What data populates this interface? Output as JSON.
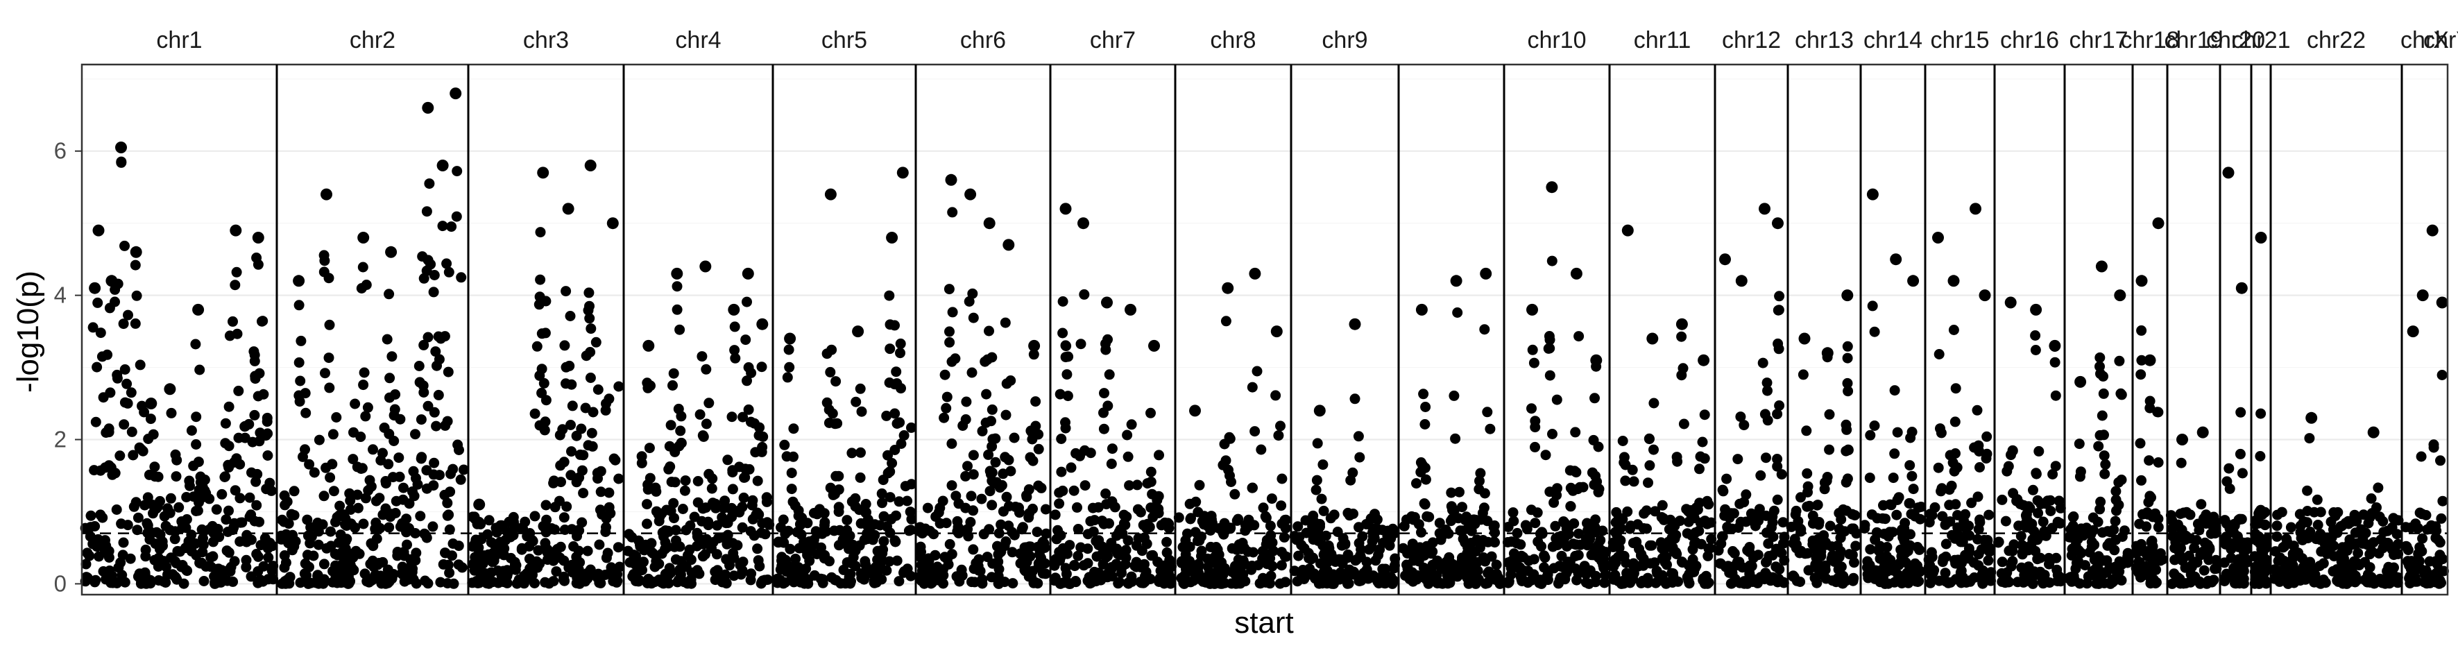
{
  "chart_data": {
    "type": "scatter",
    "title": "",
    "xlabel": "start",
    "ylabel": "-log10(p)",
    "ylim": [
      -0.15,
      7.2
    ],
    "yticks": [
      "0",
      "2",
      "4",
      "6"
    ],
    "grid": true,
    "reference_line": {
      "y": 0.7,
      "style": "dashed"
    },
    "panels": [
      {
        "name": "chr1",
        "label": "chr1",
        "peaks": [
          {
            "x": 0.05,
            "y": 4.1
          },
          {
            "x": 0.07,
            "y": 4.9
          },
          {
            "x": 0.14,
            "y": 4.2
          },
          {
            "x": 0.19,
            "y": 6.05
          },
          {
            "x": 0.27,
            "y": 4.6
          },
          {
            "x": 0.35,
            "y": 2.5
          },
          {
            "x": 0.45,
            "y": 2.7
          },
          {
            "x": 0.6,
            "y": 3.8
          },
          {
            "x": 0.8,
            "y": 4.9
          },
          {
            "x": 0.92,
            "y": 4.8
          }
        ],
        "floor": 0.2
      },
      {
        "name": "chr2",
        "label": "chr2",
        "peaks": [
          {
            "x": 0.1,
            "y": 4.2
          },
          {
            "x": 0.25,
            "y": 5.4
          },
          {
            "x": 0.45,
            "y": 4.8
          },
          {
            "x": 0.6,
            "y": 4.6
          },
          {
            "x": 0.8,
            "y": 6.6
          },
          {
            "x": 0.88,
            "y": 5.8
          },
          {
            "x": 0.95,
            "y": 6.8
          }
        ],
        "floor": 0.4
      },
      {
        "name": "chr3",
        "label": "chr3",
        "peaks": [
          {
            "x": 0.05,
            "y": 1.1
          },
          {
            "x": 0.2,
            "y": 0.8
          },
          {
            "x": 0.48,
            "y": 5.7
          },
          {
            "x": 0.65,
            "y": 5.2
          },
          {
            "x": 0.8,
            "y": 5.8
          },
          {
            "x": 0.95,
            "y": 5.0
          }
        ],
        "floor": 0.05
      },
      {
        "name": "chr4",
        "label": "chr4",
        "peaks": [
          {
            "x": 0.15,
            "y": 3.3
          },
          {
            "x": 0.35,
            "y": 4.3
          },
          {
            "x": 0.55,
            "y": 4.4
          },
          {
            "x": 0.75,
            "y": 3.8
          },
          {
            "x": 0.85,
            "y": 4.3
          },
          {
            "x": 0.95,
            "y": 3.6
          }
        ],
        "floor": 0.1
      },
      {
        "name": "chr5",
        "label": "chr5",
        "peaks": [
          {
            "x": 0.1,
            "y": 3.4
          },
          {
            "x": 0.4,
            "y": 5.4
          },
          {
            "x": 0.6,
            "y": 3.5
          },
          {
            "x": 0.85,
            "y": 4.8
          },
          {
            "x": 0.93,
            "y": 5.7
          }
        ],
        "floor": 0.1
      },
      {
        "name": "chr6",
        "label": "chr6",
        "peaks": [
          {
            "x": 0.25,
            "y": 5.6
          },
          {
            "x": 0.4,
            "y": 5.4
          },
          {
            "x": 0.55,
            "y": 5.0
          },
          {
            "x": 0.7,
            "y": 4.7
          },
          {
            "x": 0.9,
            "y": 3.3
          }
        ],
        "floor": 0.2
      },
      {
        "name": "chr7",
        "label": "chr7",
        "peaks": [
          {
            "x": 0.1,
            "y": 5.2
          },
          {
            "x": 0.25,
            "y": 5.0
          },
          {
            "x": 0.45,
            "y": 3.9
          },
          {
            "x": 0.65,
            "y": 3.8
          },
          {
            "x": 0.85,
            "y": 3.3
          }
        ],
        "floor": 0.1
      },
      {
        "name": "chr8",
        "label": "chr8",
        "peaks": [
          {
            "x": 0.15,
            "y": 2.4
          },
          {
            "x": 0.45,
            "y": 4.1
          },
          {
            "x": 0.7,
            "y": 4.3
          },
          {
            "x": 0.9,
            "y": 3.5
          }
        ],
        "floor": 0.1
      },
      {
        "name": "chr9",
        "label": "chr9",
        "peaks": [
          {
            "x": 0.25,
            "y": 2.4
          },
          {
            "x": 0.6,
            "y": 3.6
          }
        ],
        "floor": 0.1
      },
      {
        "name": "chr9b",
        "label": "",
        "peaks": [
          {
            "x": 0.2,
            "y": 3.8
          },
          {
            "x": 0.55,
            "y": 4.2
          },
          {
            "x": 0.85,
            "y": 4.3
          }
        ],
        "floor": 0.05
      },
      {
        "name": "chr10",
        "label": "chr10",
        "peaks": [
          {
            "x": 0.25,
            "y": 3.8
          },
          {
            "x": 0.45,
            "y": 5.5
          },
          {
            "x": 0.7,
            "y": 4.3
          },
          {
            "x": 0.9,
            "y": 3.1
          }
        ],
        "floor": 0.1
      },
      {
        "name": "chr11",
        "label": "chr11",
        "peaks": [
          {
            "x": 0.15,
            "y": 4.9
          },
          {
            "x": 0.4,
            "y": 3.4
          },
          {
            "x": 0.7,
            "y": 3.6
          },
          {
            "x": 0.92,
            "y": 3.1
          }
        ],
        "floor": 0.2
      },
      {
        "name": "chr12",
        "label": "chr12",
        "peaks": [
          {
            "x": 0.1,
            "y": 4.5
          },
          {
            "x": 0.35,
            "y": 4.2
          },
          {
            "x": 0.7,
            "y": 5.2
          },
          {
            "x": 0.9,
            "y": 5.0
          }
        ],
        "floor": 0.1
      },
      {
        "name": "chr13",
        "label": "chr13",
        "peaks": [
          {
            "x": 0.2,
            "y": 3.4
          },
          {
            "x": 0.55,
            "y": 3.2
          },
          {
            "x": 0.85,
            "y": 4.0
          }
        ],
        "floor": 0.2
      },
      {
        "name": "chr14",
        "label": "chr14",
        "peaks": [
          {
            "x": 0.15,
            "y": 5.4
          },
          {
            "x": 0.55,
            "y": 4.5
          },
          {
            "x": 0.85,
            "y": 4.2
          }
        ],
        "floor": 0.2
      },
      {
        "name": "chr15",
        "label": "chr15",
        "peaks": [
          {
            "x": 0.15,
            "y": 4.8
          },
          {
            "x": 0.4,
            "y": 4.2
          },
          {
            "x": 0.75,
            "y": 5.2
          },
          {
            "x": 0.9,
            "y": 4.0
          }
        ],
        "floor": 0.1
      },
      {
        "name": "chr16",
        "label": "chr16",
        "peaks": [
          {
            "x": 0.2,
            "y": 3.9
          },
          {
            "x": 0.6,
            "y": 3.8
          },
          {
            "x": 0.9,
            "y": 3.3
          }
        ],
        "floor": 0.3
      },
      {
        "name": "chr17",
        "label": "chr17",
        "peaks": [
          {
            "x": 0.2,
            "y": 2.8
          },
          {
            "x": 0.55,
            "y": 4.4
          },
          {
            "x": 0.85,
            "y": 4.0
          }
        ],
        "floor": 0.1
      },
      {
        "name": "chr18",
        "label": "chr18",
        "peaks": [
          {
            "x": 0.2,
            "y": 4.2
          },
          {
            "x": 0.5,
            "y": 3.1
          },
          {
            "x": 0.8,
            "y": 5.0
          }
        ],
        "floor": 0.1
      },
      {
        "name": "chr19",
        "label": "chr19",
        "peaks": [
          {
            "x": 0.25,
            "y": 2.0
          },
          {
            "x": 0.7,
            "y": 2.1
          }
        ],
        "floor": 0.1
      },
      {
        "name": "chr20",
        "label": "chr20",
        "peaks": [
          {
            "x": 0.2,
            "y": 5.7
          },
          {
            "x": 0.75,
            "y": 4.1
          }
        ],
        "floor": 0.1
      },
      {
        "name": "chr21",
        "label": "chr21",
        "peaks": [
          {
            "x": 0.5,
            "y": 4.8
          }
        ],
        "floor": 0.1
      },
      {
        "name": "chr22",
        "label": "chr22",
        "peaks": [
          {
            "x": 0.3,
            "y": 2.3
          },
          {
            "x": 0.8,
            "y": 2.1
          }
        ],
        "floor": 0.1
      },
      {
        "name": "chrX",
        "label": "chrX",
        "peaks": [
          {
            "x": 0.2,
            "y": 3.5
          },
          {
            "x": 0.45,
            "y": 4.0
          },
          {
            "x": 0.7,
            "y": 4.9
          },
          {
            "x": 0.95,
            "y": 3.9
          }
        ],
        "floor": 0.1
      },
      {
        "name": "chrY",
        "label": "chrY",
        "peaks": [
          {
            "x": 0.4,
            "y": 1.8
          },
          {
            "x": 0.9,
            "y": 0.25
          }
        ],
        "floor": 0.05
      }
    ]
  }
}
